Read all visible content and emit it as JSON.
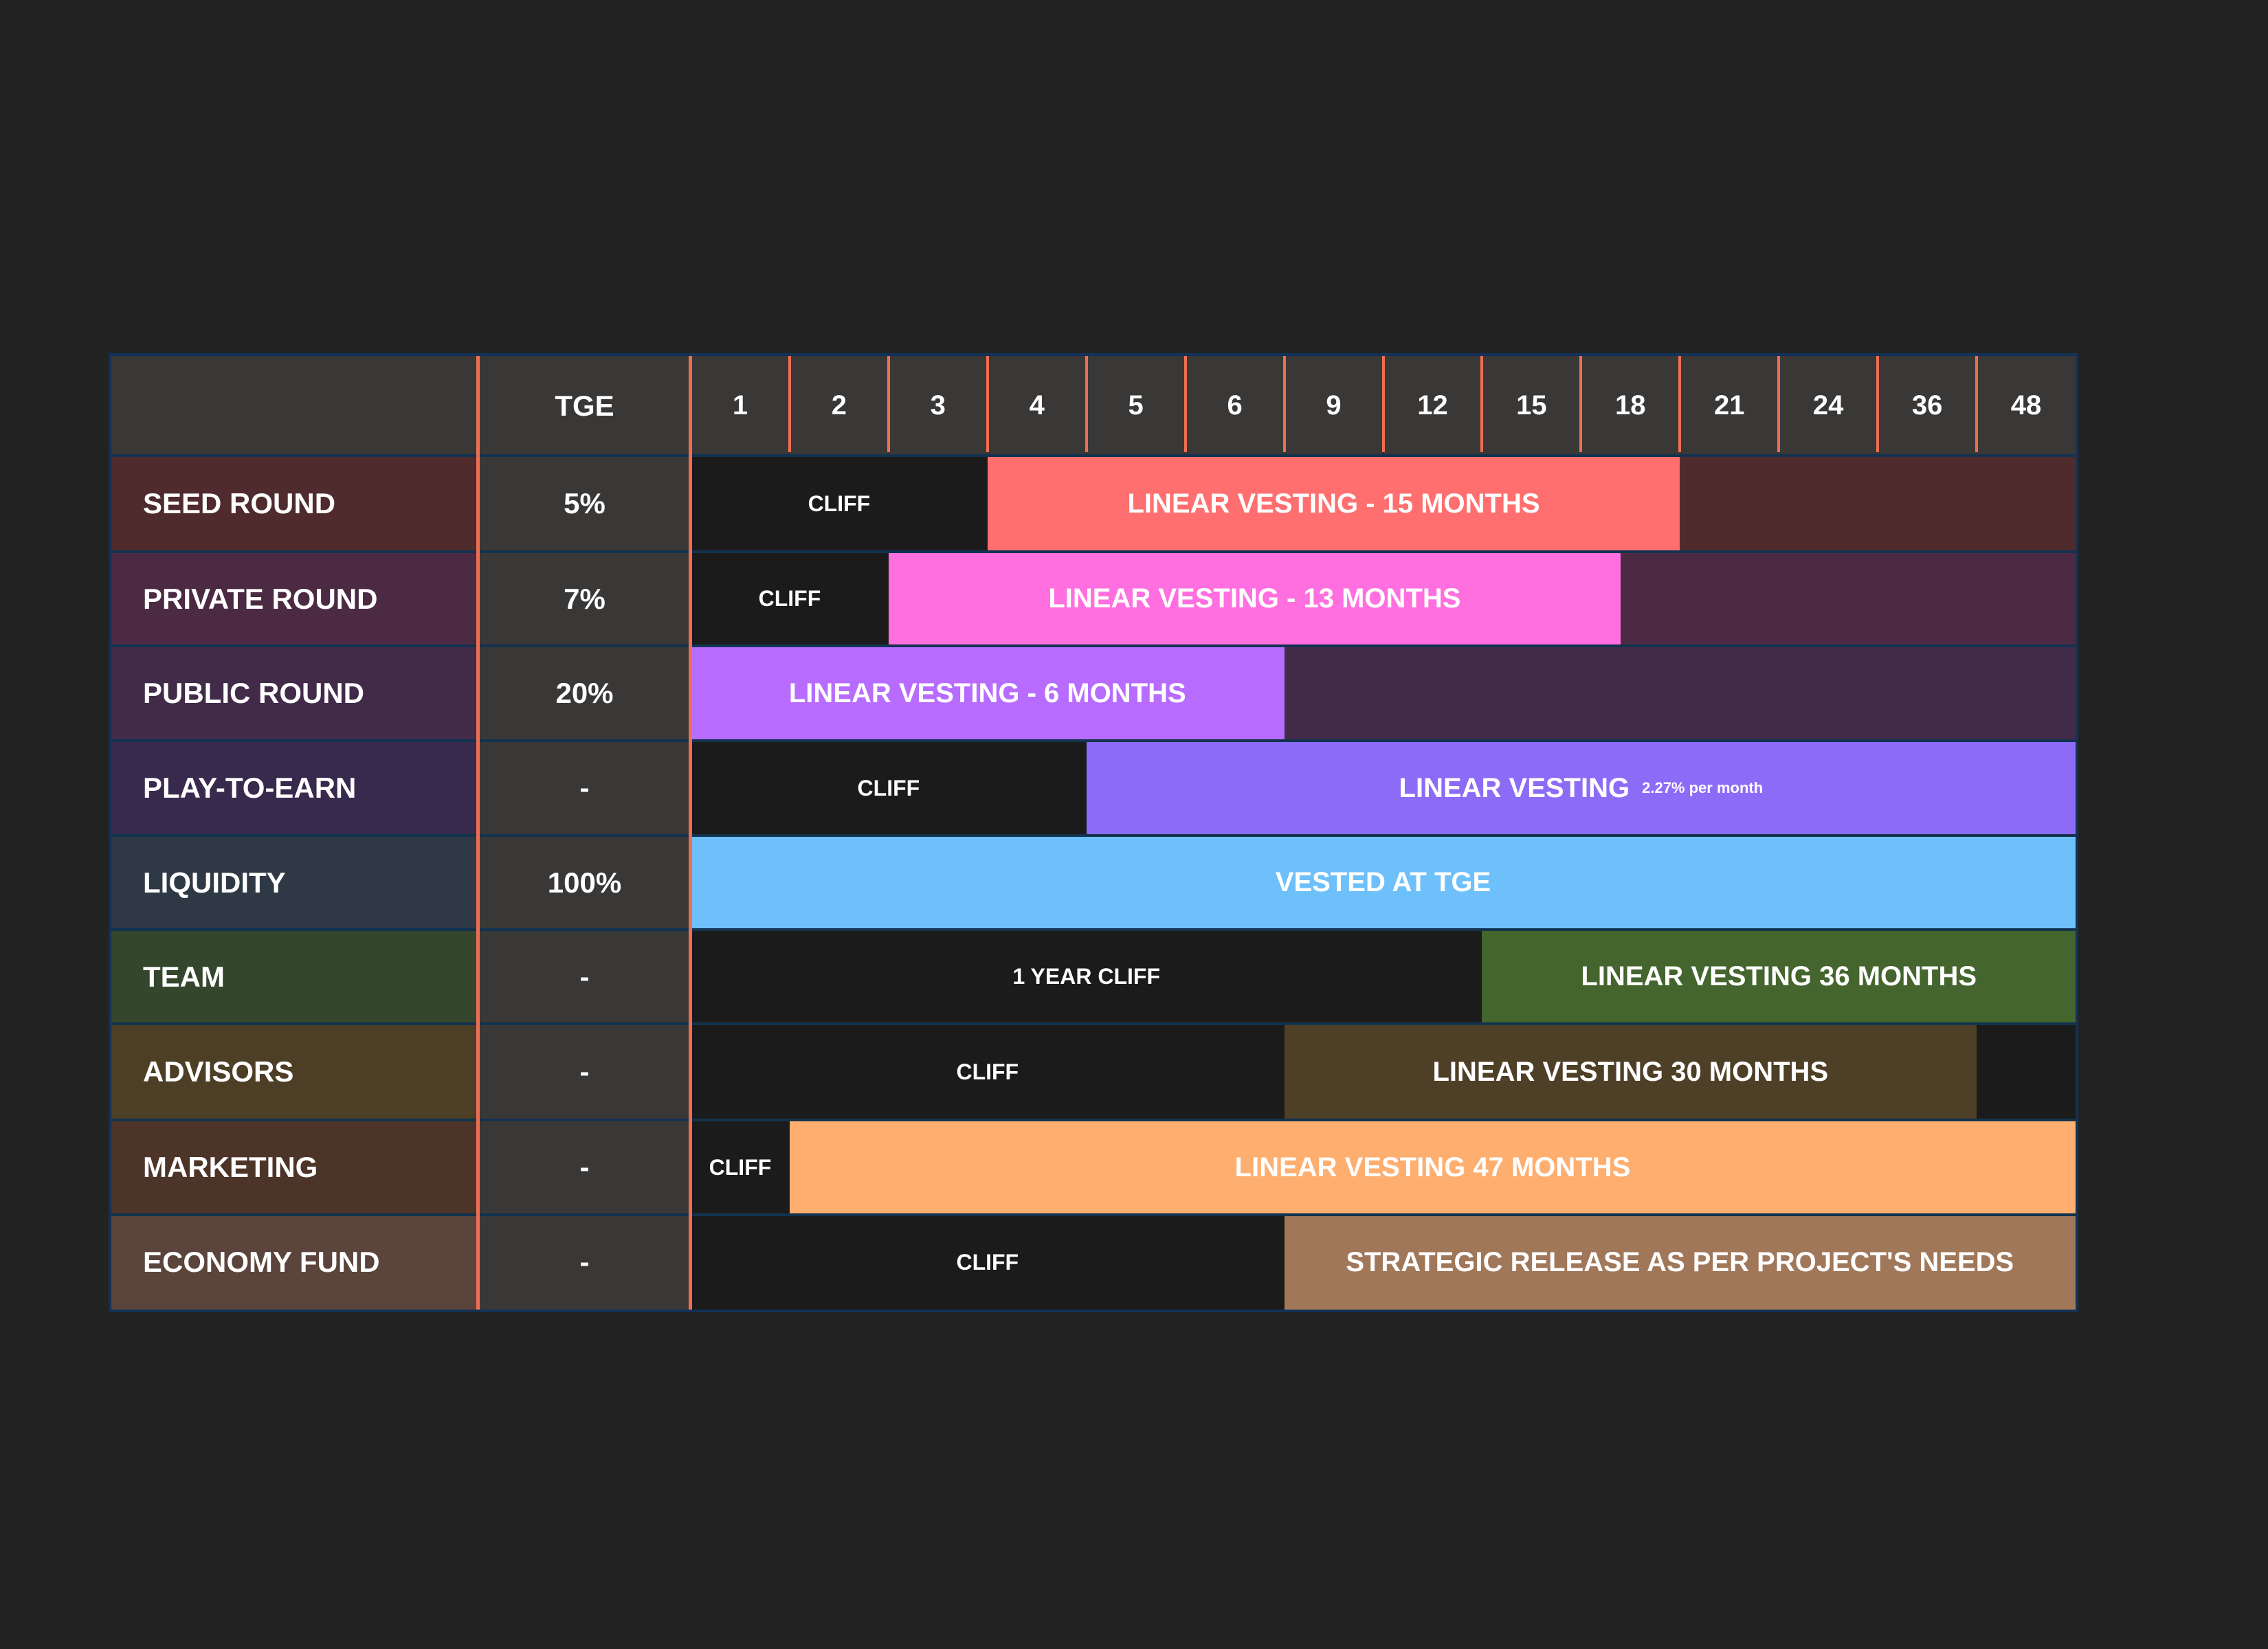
{
  "header": {
    "tge_label": "TGE",
    "months": [
      "1",
      "2",
      "3",
      "4",
      "5",
      "6",
      "9",
      "12",
      "15",
      "18",
      "21",
      "24",
      "36",
      "48"
    ]
  },
  "rows": [
    {
      "name": "SEED ROUND",
      "tge": "5%",
      "label_bg": "#4f2b2d",
      "track_bg": "#4f2b2d",
      "segments": [
        {
          "type": "cliff",
          "text": "CLIFF",
          "start": 0,
          "end": 3
        },
        {
          "type": "vest",
          "text": "LINEAR VESTING - 15 MONTHS",
          "start": 3,
          "end": 10,
          "color": "#ff6f6f"
        }
      ]
    },
    {
      "name": "PRIVATE ROUND",
      "tge": "7%",
      "label_bg": "#4c2a44",
      "track_bg": "#4c2a44",
      "segments": [
        {
          "type": "cliff",
          "text": "CLIFF",
          "start": 0,
          "end": 2
        },
        {
          "type": "vest",
          "text": "LINEAR VESTING - 13 MONTHS",
          "start": 2,
          "end": 9.4,
          "color": "#ff6fe0"
        }
      ]
    },
    {
      "name": "PUBLIC ROUND",
      "tge": "20%",
      "label_bg": "#412b49",
      "track_bg": "#412b49",
      "segments": [
        {
          "type": "vest",
          "text": "LINEAR VESTING - 6 MONTHS",
          "start": 0,
          "end": 6,
          "color": "#b86cff"
        }
      ]
    },
    {
      "name": "PLAY-TO-EARN",
      "tge": "-",
      "label_bg": "#372a4d",
      "track_bg": "#372a4d",
      "segments": [
        {
          "type": "cliff",
          "text": "CLIFF",
          "start": 0,
          "end": 4
        },
        {
          "type": "vest",
          "text": "LINEAR VESTING",
          "note": "2.27% per month",
          "start": 4,
          "end": 14,
          "color": "#8c6cf7"
        }
      ]
    },
    {
      "name": "LIQUIDITY",
      "tge": "100%",
      "label_bg": "#2f3946",
      "track_bg": "#2f3946",
      "segments": [
        {
          "type": "vest",
          "text": "VESTED AT TGE",
          "start": 0,
          "end": 14,
          "color": "#6ec0fa"
        }
      ]
    },
    {
      "name": "TEAM",
      "tge": "-",
      "label_bg": "#34472d",
      "track_bg": "#1c1b1b",
      "segments": [
        {
          "type": "cliff",
          "text": "1  YEAR CLIFF",
          "start": 0,
          "end": 8
        },
        {
          "type": "vest",
          "text": "LINEAR VESTING 36 MONTHS",
          "start": 8,
          "end": 14,
          "color": "#44652d"
        }
      ]
    },
    {
      "name": "ADVISORS",
      "tge": "-",
      "label_bg": "#4d3f26",
      "track_bg": "#1c1b1b",
      "segments": [
        {
          "type": "cliff",
          "text": "CLIFF",
          "start": 0,
          "end": 6
        },
        {
          "type": "vest",
          "text": "LINEAR VESTING 30 MONTHS",
          "start": 6,
          "end": 13,
          "color": "#4d4027"
        }
      ]
    },
    {
      "name": "MARKETING",
      "tge": "-",
      "label_bg": "#4d3429",
      "track_bg": "#1c1b1b",
      "segments": [
        {
          "type": "cliff",
          "text": "CLIFF",
          "start": 0,
          "end": 1
        },
        {
          "type": "vest",
          "text": "LINEAR VESTING 47 MONTHS",
          "start": 1,
          "end": 14,
          "color": "#feae6f"
        }
      ]
    },
    {
      "name": "ECONOMY FUND",
      "tge": "-",
      "label_bg": "#5a443b",
      "track_bg": "#1c1b1b",
      "segments": [
        {
          "type": "cliff",
          "text": "CLIFF",
          "start": 0,
          "end": 6
        },
        {
          "type": "vest",
          "text": "STRATEGIC RELEASE AS PER PROJECT'S NEEDS",
          "start": 6,
          "end": 14,
          "color": "#a1775a"
        }
      ]
    }
  ],
  "chart_data": {
    "type": "table",
    "columns": [
      "TGE",
      "1",
      "2",
      "3",
      "4",
      "5",
      "6",
      "9",
      "12",
      "15",
      "18",
      "21",
      "24",
      "36",
      "48"
    ],
    "rows": [
      {
        "category": "SEED ROUND",
        "tge": "5%",
        "cliff": "CLIFF",
        "vesting": "LINEAR VESTING - 15 MONTHS"
      },
      {
        "category": "PRIVATE ROUND",
        "tge": "7%",
        "cliff": "CLIFF",
        "vesting": "LINEAR VESTING - 13 MONTHS"
      },
      {
        "category": "PUBLIC ROUND",
        "tge": "20%",
        "cliff": "",
        "vesting": "LINEAR VESTING - 6 MONTHS"
      },
      {
        "category": "PLAY-TO-EARN",
        "tge": "-",
        "cliff": "CLIFF",
        "vesting": "LINEAR VESTING 2.27% per month"
      },
      {
        "category": "LIQUIDITY",
        "tge": "100%",
        "cliff": "",
        "vesting": "VESTED AT TGE"
      },
      {
        "category": "TEAM",
        "tge": "-",
        "cliff": "1 YEAR CLIFF",
        "vesting": "LINEAR VESTING 36 MONTHS"
      },
      {
        "category": "ADVISORS",
        "tge": "-",
        "cliff": "CLIFF",
        "vesting": "LINEAR VESTING 30 MONTHS"
      },
      {
        "category": "MARKETING",
        "tge": "-",
        "cliff": "CLIFF",
        "vesting": "LINEAR VESTING 47 MONTHS"
      },
      {
        "category": "ECONOMY FUND",
        "tge": "-",
        "cliff": "CLIFF",
        "vesting": "STRATEGIC RELEASE AS PER PROJECT'S NEEDS"
      }
    ]
  }
}
